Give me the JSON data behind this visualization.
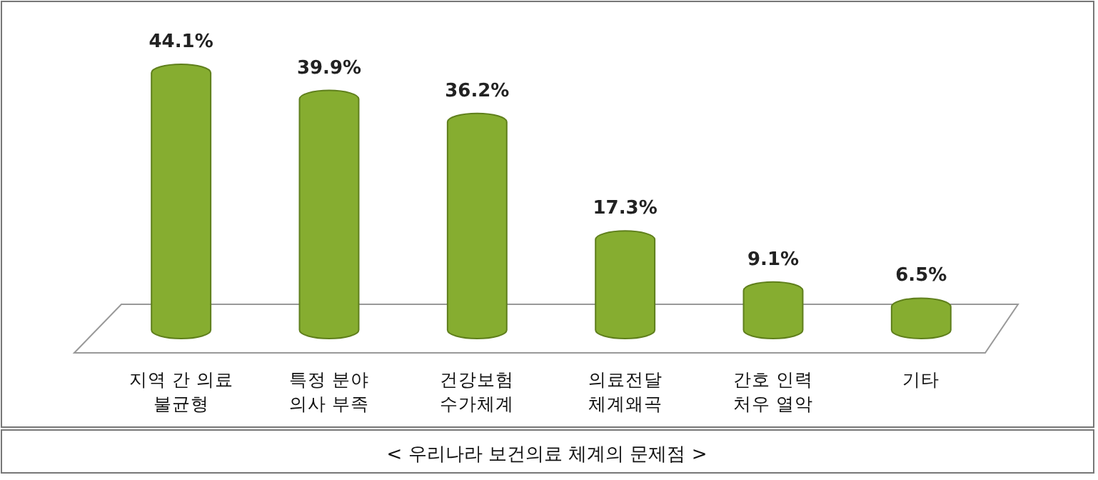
{
  "chart_data": {
    "type": "bar",
    "title": "< 우리나라 보건의료 체계의 문제점 >",
    "categories": [
      "지역 간 의료\n불균형",
      "특정 분야\n의사 부족",
      "건강보험\n수가체계",
      "의료전달\n체계왜곡",
      "간호 인력\n처우 열악",
      "기타"
    ],
    "values": [
      44.1,
      39.9,
      36.2,
      17.3,
      9.1,
      6.5
    ],
    "value_labels": [
      "44.1%",
      "39.9%",
      "36.2%",
      "17.3%",
      "9.1%",
      "6.5%"
    ],
    "color": "#86ad30"
  }
}
